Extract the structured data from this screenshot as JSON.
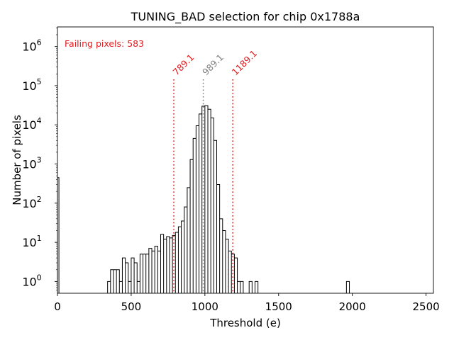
{
  "chart_data": {
    "type": "histogram",
    "title": "TUNING_BAD selection for chip 0x1788a",
    "xlabel": "Threshold (e)",
    "ylabel": "Number of pixels",
    "xlim": [
      0,
      2550
    ],
    "ylim_log10": [
      -0.3,
      6.5
    ],
    "yscale": "log",
    "x_ticks": [
      {
        "value": 0,
        "label": "0"
      },
      {
        "value": 500,
        "label": "500"
      },
      {
        "value": 1000,
        "label": "1000"
      },
      {
        "value": 1500,
        "label": "1500"
      },
      {
        "value": 2000,
        "label": "2000"
      },
      {
        "value": 2500,
        "label": "2500"
      }
    ],
    "y_ticks": [
      {
        "value": 1,
        "base": "10",
        "exp": "0"
      },
      {
        "value": 10,
        "base": "10",
        "exp": "1"
      },
      {
        "value": 100,
        "base": "10",
        "exp": "2"
      },
      {
        "value": 1000,
        "base": "10",
        "exp": "3"
      },
      {
        "value": 10000,
        "base": "10",
        "exp": "4"
      },
      {
        "value": 100000,
        "base": "10",
        "exp": "5"
      },
      {
        "value": 1000000,
        "base": "10",
        "exp": "6"
      }
    ],
    "bins": [
      [
        0,
        10,
        450
      ],
      [
        340,
        360,
        1
      ],
      [
        360,
        380,
        2
      ],
      [
        380,
        400,
        2
      ],
      [
        400,
        420,
        2
      ],
      [
        420,
        440,
        1
      ],
      [
        440,
        460,
        4
      ],
      [
        460,
        480,
        3
      ],
      [
        480,
        500,
        1
      ],
      [
        500,
        520,
        4
      ],
      [
        520,
        540,
        3
      ],
      [
        540,
        560,
        1
      ],
      [
        560,
        580,
        5
      ],
      [
        580,
        600,
        5
      ],
      [
        600,
        620,
        5
      ],
      [
        620,
        640,
        7
      ],
      [
        640,
        660,
        6
      ],
      [
        660,
        680,
        8
      ],
      [
        680,
        700,
        6
      ],
      [
        700,
        720,
        16
      ],
      [
        720,
        740,
        12
      ],
      [
        740,
        760,
        14
      ],
      [
        760,
        780,
        13
      ],
      [
        780,
        800,
        15
      ],
      [
        800,
        820,
        18
      ],
      [
        820,
        840,
        25
      ],
      [
        840,
        860,
        35
      ],
      [
        860,
        880,
        80
      ],
      [
        880,
        900,
        250
      ],
      [
        900,
        920,
        1300
      ],
      [
        920,
        940,
        4500
      ],
      [
        940,
        960,
        9500
      ],
      [
        960,
        980,
        19000
      ],
      [
        980,
        1000,
        30000
      ],
      [
        1000,
        1020,
        31000
      ],
      [
        1020,
        1040,
        25000
      ],
      [
        1040,
        1060,
        15000
      ],
      [
        1060,
        1080,
        4000
      ],
      [
        1080,
        1100,
        300
      ],
      [
        1100,
        1120,
        40
      ],
      [
        1120,
        1140,
        20
      ],
      [
        1140,
        1160,
        12
      ],
      [
        1160,
        1180,
        6
      ],
      [
        1180,
        1200,
        5
      ],
      [
        1200,
        1220,
        4
      ],
      [
        1220,
        1240,
        1
      ],
      [
        1240,
        1260,
        1
      ],
      [
        1300,
        1320,
        1
      ],
      [
        1340,
        1360,
        1
      ],
      [
        1960,
        1980,
        1
      ]
    ],
    "vlines": [
      {
        "x": 789.1,
        "label": "789.1",
        "color": "#e31a1c"
      },
      {
        "x": 989.1,
        "label": "989.1",
        "color": "#808080"
      },
      {
        "x": 1189.1,
        "label": "1189.1",
        "color": "#e31a1c"
      }
    ],
    "annotation": {
      "text": "Failing pixels: 583",
      "color": "#e31a1c"
    }
  }
}
